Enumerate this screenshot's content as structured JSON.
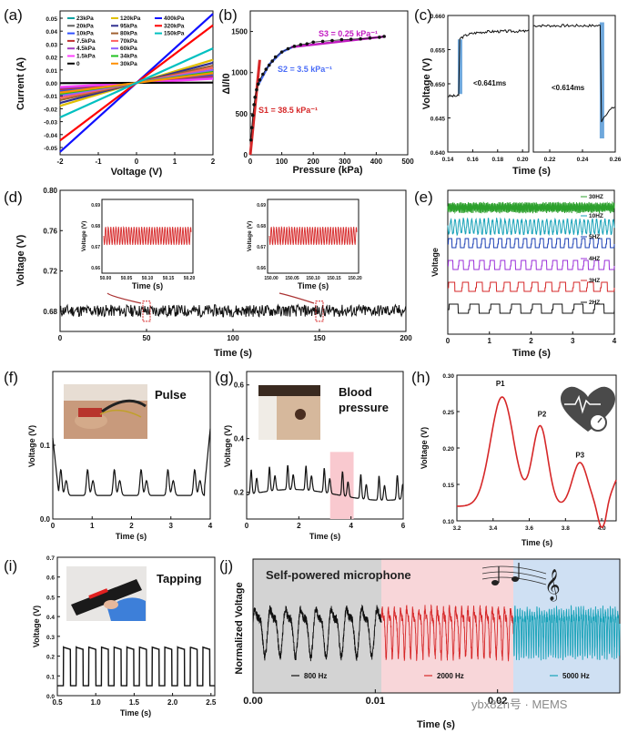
{
  "panels": {
    "a": {
      "label": "(a)"
    },
    "b": {
      "label": "(b)"
    },
    "c": {
      "label": "(c)"
    },
    "d": {
      "label": "(d)"
    },
    "e": {
      "label": "(e)"
    },
    "f": {
      "label": "(f)",
      "title": "Pulse"
    },
    "g": {
      "label": "(g)",
      "title_line1": "Blood",
      "title_line2": "pressure"
    },
    "h": {
      "label": "(h)"
    },
    "i": {
      "label": "(i)",
      "title": "Tapping"
    },
    "j": {
      "label": "(j)",
      "title": "Self-powered microphone"
    }
  },
  "watermark": "ybx82n号 · MEMS",
  "colors": {
    "black": "#111111",
    "red": "#d62728",
    "blue": "#1a5fb4",
    "purple": "#8a2be2",
    "green": "#2ca02c",
    "cyan": "#17a2b8",
    "grey_bg": "#d0d0d0",
    "pink_bg": "#f9d5d8",
    "blue_bg": "#cfe0f3"
  },
  "chart_data": [
    {
      "id": "a",
      "type": "line",
      "xlabel": "Voltage (V)",
      "ylabel": "Current (A)",
      "xlim": [
        -2,
        2
      ],
      "ylim": [
        -0.05,
        0.05
      ],
      "xticks": [
        "-2",
        "-1",
        "0",
        "1",
        "2"
      ],
      "yticks": [
        "0.05",
        "0.04",
        "0.03",
        "0.02",
        "0.01",
        "0.00",
        "-0.01",
        "-0.02",
        "-0.03",
        "-0.04",
        "-0.05"
      ],
      "series": [
        {
          "name": "23kPa",
          "color": "#00a0a0",
          "slope": 0.003
        },
        {
          "name": "20kPa",
          "color": "#606060",
          "slope": 0.0028
        },
        {
          "name": "10kPa",
          "color": "#3050ff",
          "slope": 0.0025
        },
        {
          "name": "7.5kPa",
          "color": "#c03030",
          "slope": 0.0022
        },
        {
          "name": "4.5kPa",
          "color": "#a040c0",
          "slope": 0.0018
        },
        {
          "name": "1.5kPa",
          "color": "#ff40ff",
          "slope": 0.0014
        },
        {
          "name": "0",
          "color": "#000000",
          "slope": 0.0001
        },
        {
          "name": "120kPa",
          "color": "#e0c000",
          "slope": 0.008
        },
        {
          "name": "95kPa",
          "color": "#303090",
          "slope": 0.007
        },
        {
          "name": "80kPa",
          "color": "#a06030",
          "slope": 0.006
        },
        {
          "name": "70kPa",
          "color": "#ff6060",
          "slope": 0.0052
        },
        {
          "name": "60kPa",
          "color": "#9060ff",
          "slope": 0.0045
        },
        {
          "name": "34kPa",
          "color": "#20c020",
          "slope": 0.0038
        },
        {
          "name": "30kPa",
          "color": "#ff9000",
          "slope": 0.0034
        },
        {
          "name": "400kPa",
          "color": "#1010ff",
          "slope": 0.024
        },
        {
          "name": "320kPa",
          "color": "#ff0000",
          "slope": 0.02
        },
        {
          "name": "150kPa",
          "color": "#00c0c0",
          "slope": 0.012
        }
      ]
    },
    {
      "id": "b",
      "type": "scatter",
      "xlabel": "Pressure (kPa)",
      "ylabel": "ΔI/I0",
      "xlim": [
        0,
        500
      ],
      "ylim": [
        0,
        1750
      ],
      "xticks": [
        "0",
        "100",
        "200",
        "300",
        "400",
        "500"
      ],
      "yticks": [
        "0",
        "500",
        "1000",
        "1500"
      ],
      "x": [
        2,
        5,
        8,
        12,
        15,
        20,
        25,
        30,
        40,
        50,
        60,
        70,
        80,
        100,
        120,
        140,
        160,
        180,
        200,
        230,
        260,
        290,
        320,
        350,
        380,
        410,
        425
      ],
      "y": [
        180,
        330,
        480,
        610,
        700,
        790,
        860,
        910,
        980,
        1040,
        1090,
        1140,
        1190,
        1250,
        1290,
        1320,
        1340,
        1350,
        1370,
        1380,
        1390,
        1400,
        1405,
        1410,
        1420,
        1430,
        1440
      ],
      "fits": [
        {
          "label": "S1 = 38.5 kPa⁻¹",
          "color": "#d62728",
          "x": [
            0,
            25
          ]
        },
        {
          "label": "S2 = 3.5 kPa⁻¹",
          "color": "#4a6cf7",
          "x": [
            25,
            130
          ]
        },
        {
          "label": "S3 = 0.25 kPa⁻¹",
          "color": "#c21cc2",
          "x": [
            130,
            430
          ]
        }
      ]
    },
    {
      "id": "c",
      "type": "line",
      "xlabel": "Time (s)",
      "ylabel": "Voltage (V)",
      "ylim": [
        0.64,
        0.66
      ],
      "yticks": [
        "0.660",
        "0.655",
        "0.650",
        "0.645",
        "0.640"
      ],
      "left": {
        "xlim": [
          0.14,
          0.205
        ],
        "xticks": [
          "0.14",
          "0.16",
          "0.18",
          "0.20"
        ],
        "annotation": "<0.641ms"
      },
      "right": {
        "xlim": [
          0.21,
          0.26
        ],
        "xticks": [
          "0.22",
          "0.24",
          "0.26"
        ],
        "annotation": "<0.614ms"
      }
    },
    {
      "id": "d",
      "type": "line",
      "xlabel": "Time (s)",
      "ylabel": "Voltage (V)",
      "xlim": [
        0,
        200
      ],
      "ylim": [
        0.66,
        0.8
      ],
      "xticks": [
        "0",
        "50",
        "100",
        "150",
        "200"
      ],
      "yticks": [
        "0.80",
        "0.76",
        "0.72",
        "0.68"
      ],
      "inset1": {
        "xlabel": "Time (s)",
        "ylabel": "Voltage (V)",
        "xticks": [
          "50.00",
          "50.05",
          "50.10",
          "50.15",
          "50.20"
        ],
        "yticks": [
          "0.69",
          "0.68",
          "0.67",
          "0.66"
        ]
      },
      "inset2": {
        "xlabel": "Time (s)",
        "ylabel": "Voltage (V)",
        "xticks": [
          "150.00",
          "150.05",
          "150.10",
          "150.15",
          "150.20"
        ],
        "yticks": [
          "0.69",
          "0.68",
          "0.67",
          "0.66"
        ]
      }
    },
    {
      "id": "e",
      "type": "line",
      "xlabel": "Time (s)",
      "ylabel": "Voltage",
      "xlim": [
        0,
        4
      ],
      "xticks": [
        "0",
        "1",
        "2",
        "3",
        "4"
      ],
      "series": [
        {
          "name": "30HZ",
          "color": "#2ca02c",
          "freq": 30
        },
        {
          "name": "10HZ",
          "color": "#17a2b8",
          "freq": 10
        },
        {
          "name": "5HZ",
          "color": "#1a3fb4",
          "freq": 5
        },
        {
          "name": "4HZ",
          "color": "#9b30d9",
          "freq": 4
        },
        {
          "name": "3HZ",
          "color": "#d62728",
          "freq": 3
        },
        {
          "name": "2HZ",
          "color": "#111111",
          "freq": 2
        }
      ]
    },
    {
      "id": "f",
      "type": "line",
      "xlabel": "Time (s)",
      "ylabel": "Voltage (V)",
      "xlim": [
        0,
        4
      ],
      "ylim": [
        0.0,
        0.2
      ],
      "xticks": [
        "0",
        "1",
        "2",
        "3",
        "4"
      ],
      "yticks": [
        "0.1",
        "0.0"
      ]
    },
    {
      "id": "g",
      "type": "line",
      "xlabel": "Time (s)",
      "ylabel": "Voltage (V)",
      "xlim": [
        0,
        6
      ],
      "ylim": [
        0.1,
        0.65
      ],
      "xticks": [
        "0",
        "2",
        "4",
        "6"
      ],
      "yticks": [
        "0.6",
        "0.4",
        "0.2"
      ]
    },
    {
      "id": "h",
      "type": "line",
      "xlabel": "Time (s)",
      "ylabel": "Voltage (V)",
      "xlim": [
        3.2,
        4.08
      ],
      "ylim": [
        0.1,
        0.3
      ],
      "xticks": [
        "3.2",
        "3.4",
        "3.6",
        "3.8",
        "4.0"
      ],
      "yticks": [
        "0.30",
        "0.25",
        "0.20",
        "0.15",
        "0.10"
      ],
      "peaks": [
        "P1",
        "P2",
        "P3"
      ]
    },
    {
      "id": "i",
      "type": "line",
      "xlabel": "Time (s)",
      "ylabel": "Voltage (V)",
      "xlim": [
        0.5,
        2.55
      ],
      "ylim": [
        0.0,
        0.7
      ],
      "xticks": [
        "0.5",
        "1.0",
        "1.5",
        "2.0",
        "2.5"
      ],
      "yticks": [
        "0.7",
        "0.6",
        "0.5",
        "0.4",
        "0.3",
        "0.2",
        "0.1",
        "0.0"
      ]
    },
    {
      "id": "j",
      "type": "line",
      "xlabel": "Time (s)",
      "ylabel": "Normalized Voltage",
      "xlim": [
        0,
        0.03
      ],
      "xticks": [
        "0.00",
        "0.01",
        "0.02"
      ],
      "series": [
        {
          "name": "800 Hz",
          "color": "#111111"
        },
        {
          "name": "2000 Hz",
          "color": "#d62728"
        },
        {
          "name": "5000 Hz",
          "color": "#17a2b8"
        }
      ]
    }
  ]
}
